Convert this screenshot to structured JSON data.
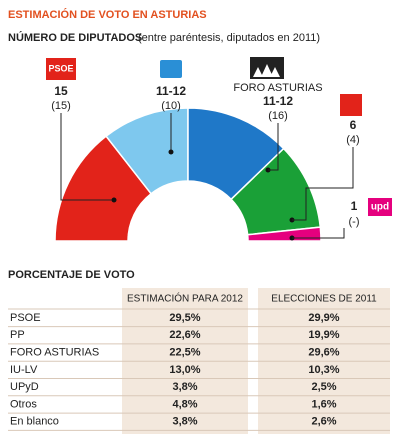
{
  "header": {
    "title": "ESTIMACIÓN DE VOTO EN ASTURIAS",
    "subtitle": "NÚMERO DE DIPUTADOS",
    "subtitle_note": "(entre paréntesis, diputados en 2011)"
  },
  "parties": [
    {
      "logo_text": "PSOE",
      "seats": "15",
      "seats_2011": "(15)"
    },
    {
      "seats": "11-12",
      "seats_2011": "(10)"
    },
    {
      "name": "FORO ASTURIAS",
      "seats": "11-12",
      "seats_2011": "(16)"
    },
    {
      "seats": "6",
      "seats_2011": "(4)"
    },
    {
      "logo_text": "upd",
      "seats": "1",
      "seats_2011": "(-)"
    }
  ],
  "table": {
    "title": "PORCENTAJE DE VOTO",
    "columns": [
      "ESTIMACIÓN PARA 2012",
      "ELECCIONES DE 2011"
    ],
    "rows": [
      [
        "PSOE",
        "29,5%",
        "29,9%"
      ],
      [
        "PP",
        "22,6%",
        "19,9%"
      ],
      [
        "FORO ASTURIAS",
        "22,5%",
        "29,6%"
      ],
      [
        "IU-LV",
        "13,0%",
        "10,3%"
      ],
      [
        "UPyD",
        "3,8%",
        "2,5%"
      ],
      [
        "Otros",
        "4,8%",
        "1,6%"
      ],
      [
        "En blanco",
        "3,8%",
        "2,6%"
      ]
    ]
  }
}
